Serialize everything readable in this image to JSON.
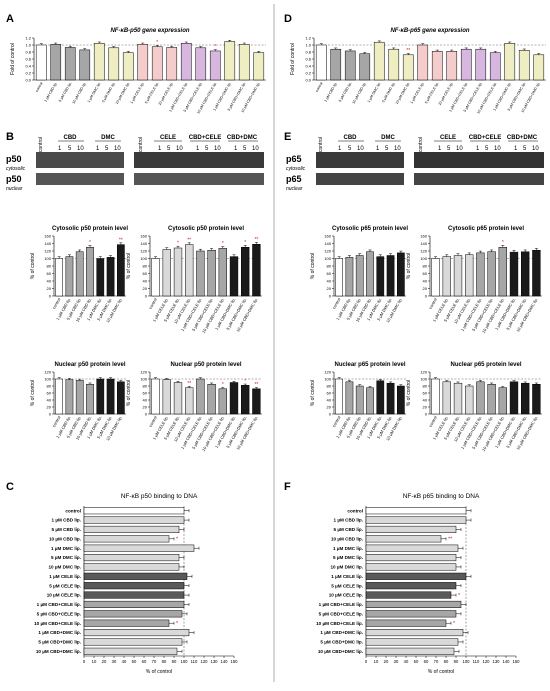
{
  "panels": [
    {
      "letter": "A"
    },
    {
      "letter": "B"
    },
    {
      "letter": "C"
    },
    {
      "letter": "D"
    },
    {
      "letter": "E"
    },
    {
      "letter": "F"
    }
  ],
  "blot_labels": {
    "p50_main": "p50",
    "p50_sub": "cytosolic",
    "p50n_main": "p50",
    "p50n_sub": "nuclear",
    "p65_main": "p65",
    "p65_sub": "cytosolic",
    "p65n_main": "p65",
    "p65n_sub": "nuclear",
    "group_cbd": "CBD",
    "group_dmc": "DMC",
    "group_cele": "CELE",
    "group_cbd_cele": "CBD+CELE",
    "group_cbd_dmc": "CBD+DMC",
    "lane_control": "control",
    "lane_1": "1",
    "lane_5": "5",
    "lane_10": "10"
  },
  "colors": {
    "accent": "#d11f1f",
    "white": "#ffffff",
    "light": "#d9d9d9",
    "mid": "#a6a6a6",
    "dark": "#595959",
    "black": "#1a1a1a",
    "yellowish": "#eeeec2",
    "pink": "#f4cccc",
    "purple": "#d7b7e0"
  },
  "chart_data": [
    {
      "id": "A",
      "type": "bar",
      "title": "NF-κB-p50 gene expression",
      "ylabel": "Fold of control",
      "ylim": [
        0,
        1.2
      ],
      "yticks": [
        "0.0",
        "0.2",
        "0.4",
        "0.6",
        "0.8",
        "1.0",
        "1.2"
      ],
      "categories": [
        "control",
        "1 µM CBD lip.",
        "5 µM CBD lip.",
        "10 µM CBD lip.",
        "1 µM DMC lip.",
        "5 µM DMC lip.",
        "10 µM DMC lip.",
        "1 µM CELE lip.",
        "5 µM CELE lip.",
        "10 µM CELE lip.",
        "1 µM CBD+CELE lip.",
        "5 µM CBD+CELE lip.",
        "10 µM CBD+CELE lip.",
        "1 µM CBD+DMC lip.",
        "5 µM CBD+DMC lip.",
        "10 µM CBD+DMC lip."
      ],
      "values": [
        1.0,
        1.02,
        0.93,
        0.86,
        1.05,
        0.92,
        0.78,
        1.02,
        0.95,
        0.93,
        1.05,
        0.92,
        0.83,
        1.1,
        1.02,
        0.78
      ],
      "stars": [
        "",
        "",
        "",
        "",
        "",
        "",
        "",
        "",
        "*",
        "",
        "",
        "",
        "*",
        "",
        "",
        ""
      ]
    },
    {
      "id": "D",
      "type": "bar",
      "title": "NF-κB-p65 gene expression",
      "ylabel": "Fold of control",
      "ylim": [
        0,
        1.2
      ],
      "yticks": [
        "0.0",
        "0.2",
        "0.4",
        "0.6",
        "0.8",
        "1.0",
        "1.2"
      ],
      "categories": [
        "control",
        "1 µM CBD lip.",
        "5 µM CBD lip.",
        "10 µM CBD lip.",
        "1 µM DMC lip.",
        "5 µM DMC lip.",
        "10 µM DMC lip.",
        "1 µM CELE lip.",
        "5 µM CELE lip.",
        "10 µM CELE lip.",
        "1 µM CBD+CELE lip.",
        "5 µM CBD+CELE lip.",
        "10 µM CBD+CELE lip.",
        "1 µM CBD+DMC lip.",
        "5 µM CBD+DMC lip.",
        "10 µM CBD+DMC lip."
      ],
      "values": [
        1.0,
        0.88,
        0.83,
        0.75,
        1.08,
        0.88,
        0.72,
        1.0,
        0.82,
        0.82,
        0.88,
        0.88,
        0.78,
        1.05,
        0.85,
        0.72
      ],
      "stars": [
        "",
        "",
        "",
        "",
        "",
        "",
        "**",
        "",
        "",
        "",
        "",
        "",
        "",
        "",
        "",
        ""
      ]
    },
    {
      "id": "B1",
      "type": "bar",
      "title": "Cytosolic p50 protein level",
      "ylabel": "% of control",
      "ylim": [
        0,
        160
      ],
      "yticks": [
        "0",
        "20",
        "40",
        "60",
        "80",
        "100",
        "120",
        "140",
        "160"
      ],
      "categories": [
        "control",
        "1 µM CBD lip.",
        "5 µM CBD lip.",
        "10 µM CBD lip.",
        "1 µM DMC lip.",
        "5 µM DMC lip.",
        "10 µM DMC lip."
      ],
      "values": [
        100,
        105,
        118,
        130,
        100,
        103,
        137
      ],
      "stars": [
        "",
        "",
        "",
        "*",
        "",
        "",
        "**"
      ]
    },
    {
      "id": "B2",
      "type": "bar",
      "title": "Cytosolic p50 protein level",
      "ylabel": "% of control",
      "ylim": [
        0,
        160
      ],
      "yticks": [
        "0",
        "20",
        "40",
        "60",
        "80",
        "100",
        "120",
        "140",
        "160"
      ],
      "categories": [
        "control",
        "1 µM CELE lip.",
        "5 µM CELE lip.",
        "10 µM CELE lip.",
        "1 µM CBD+CELE lip.",
        "5 µM CBD+CELE lip.",
        "10 µM CBD+CELE lip.",
        "1 µM CBD+DMC lip.",
        "5 µM CBD+DMC lip.",
        "10 µM CBD+DMC lip."
      ],
      "values": [
        100,
        124,
        128,
        137,
        120,
        122,
        127,
        105,
        130,
        138
      ],
      "stars": [
        "",
        "",
        "*",
        "**",
        "",
        "",
        "*",
        "",
        "*",
        "**"
      ]
    },
    {
      "id": "B3",
      "type": "bar",
      "title": "Nuclear p50 protein level",
      "ylabel": "% of control",
      "ylim": [
        0,
        120
      ],
      "yticks": [
        "0",
        "20",
        "40",
        "60",
        "80",
        "100",
        "120"
      ],
      "categories": [
        "control",
        "1 µM CBD lip.",
        "5 µM CBD lip.",
        "10 µM CBD lip.",
        "1 µM DMC lip.",
        "5 µM DMC lip.",
        "10 µM DMC lip."
      ],
      "values": [
        100,
        98,
        96,
        85,
        100,
        100,
        92
      ],
      "stars": [
        "",
        "",
        "",
        "",
        "",
        "",
        ""
      ]
    },
    {
      "id": "B4",
      "type": "bar",
      "title": "Nuclear p50 protein level",
      "ylabel": "% of control",
      "ylim": [
        0,
        120
      ],
      "yticks": [
        "0",
        "20",
        "40",
        "60",
        "80",
        "100",
        "120"
      ],
      "categories": [
        "control",
        "1 µM CELE lip.",
        "5 µM CELE lip.",
        "10 µM CELE lip.",
        "1 µM CBD+CELE lip.",
        "5 µM CBD+CELE lip.",
        "10 µM CBD+CELE lip.",
        "1 µM CBD+DMC lip.",
        "5 µM CBD+DMC lip.",
        "10 µM CBD+DMC lip."
      ],
      "values": [
        100,
        98,
        90,
        75,
        100,
        85,
        72,
        90,
        82,
        72
      ],
      "stars": [
        "",
        "",
        "",
        "**",
        "",
        "",
        "*",
        "",
        "*",
        "**"
      ]
    },
    {
      "id": "E1",
      "type": "bar",
      "title": "Cytosolic p65 protein level",
      "ylabel": "% of control",
      "ylim": [
        0,
        160
      ],
      "yticks": [
        "0",
        "20",
        "40",
        "60",
        "80",
        "100",
        "120",
        "140",
        "160"
      ],
      "categories": [
        "control",
        "1 µM CBD lip.",
        "5 µM CBD lip.",
        "10 µM CBD lip.",
        "1 µM DMC lip.",
        "5 µM DMC lip.",
        "10 µM DMC lip."
      ],
      "values": [
        100,
        103,
        108,
        118,
        105,
        108,
        115
      ],
      "stars": [
        "",
        "",
        "",
        "",
        "",
        "",
        ""
      ]
    },
    {
      "id": "E2",
      "type": "bar",
      "title": "Cytosolic p65 protein level",
      "ylabel": "% of control",
      "ylim": [
        0,
        160
      ],
      "yticks": [
        "0",
        "20",
        "40",
        "60",
        "80",
        "100",
        "120",
        "140",
        "160"
      ],
      "categories": [
        "control",
        "1 µM CELE lip.",
        "5 µM CELE lip.",
        "10 µM CELE lip.",
        "1 µM CBD+CELE lip.",
        "5 µM CBD+CELE lip.",
        "10 µM CBD+CELE lip.",
        "1 µM CBD+DMC lip.",
        "5 µM CBD+DMC lip.",
        "10 µM CBD+DMC lip."
      ],
      "values": [
        100,
        105,
        108,
        110,
        115,
        118,
        130,
        117,
        118,
        122
      ],
      "stars": [
        "",
        "",
        "",
        "",
        "",
        "",
        "*",
        "",
        "",
        ""
      ]
    },
    {
      "id": "E3",
      "type": "bar",
      "title": "Nuclear p65 protein level",
      "ylabel": "% of control",
      "ylim": [
        0,
        120
      ],
      "yticks": [
        "0",
        "20",
        "40",
        "60",
        "80",
        "100",
        "120"
      ],
      "categories": [
        "control",
        "1 µM CBD lip.",
        "5 µM CBD lip.",
        "10 µM CBD lip.",
        "1 µM DMC lip.",
        "5 µM DMC lip.",
        "10 µM DMC lip."
      ],
      "values": [
        100,
        92,
        80,
        75,
        95,
        88,
        80
      ],
      "stars": [
        "",
        "",
        "",
        "",
        "",
        "",
        ""
      ]
    },
    {
      "id": "E4",
      "type": "bar",
      "title": "Nuclear p65 protein level",
      "ylabel": "% of control",
      "ylim": [
        0,
        120
      ],
      "yticks": [
        "0",
        "20",
        "40",
        "60",
        "80",
        "100",
        "120"
      ],
      "categories": [
        "control",
        "1 µM CELE lip.",
        "5 µM CELE lip.",
        "10 µM CELE lip.",
        "1 µM CBD+CELE lip.",
        "5 µM CBD+CELE lip.",
        "10 µM CBD+CELE lip.",
        "1 µM CBD+DMC lip.",
        "5 µM CBD+DMC lip.",
        "10 µM CBD+DMC lip."
      ],
      "values": [
        100,
        92,
        88,
        80,
        92,
        85,
        75,
        92,
        88,
        85
      ],
      "stars": [
        "",
        "",
        "",
        "",
        "",
        "",
        "",
        "",
        "",
        ""
      ]
    },
    {
      "id": "C",
      "type": "bar",
      "orientation": "horizontal",
      "title": "NF-κB p50 binding to DNA",
      "xlabel": "% of control",
      "xlim": [
        0,
        150
      ],
      "xticks": [
        "0",
        "10",
        "20",
        "30",
        "40",
        "50",
        "60",
        "70",
        "80",
        "90",
        "100",
        "110",
        "120",
        "130",
        "140",
        "150"
      ],
      "categories": [
        "control",
        "1 µM CBD lip.",
        "5 µM CBD lip.",
        "10 µM CBD lip.",
        "1 µM DMC lip.",
        "5 µM DMC lip.",
        "10 µM DMC lip.",
        "1 µM CELE lip.",
        "5 µM CELE lip.",
        "10 µM CELE lip.",
        "1 µM CBD+CELE lip.",
        "5 µM CBD+CELE lip.",
        "10 µM CBD+CELE lip.",
        "1 µM CBD+DMC lip.",
        "5 µM CBD+DMC lip.",
        "10 µM CBD+DMC lip."
      ],
      "values": [
        100,
        100,
        95,
        85,
        110,
        95,
        95,
        103,
        100,
        100,
        100,
        98,
        85,
        105,
        98,
        93
      ],
      "stars": [
        "",
        "",
        "",
        "*",
        "",
        "",
        "",
        "",
        "",
        "",
        "",
        "",
        "*",
        "",
        "",
        ""
      ]
    },
    {
      "id": "F",
      "type": "bar",
      "orientation": "horizontal",
      "title": "NF-κB p65 binding to DNA",
      "xlabel": "% of control",
      "xlim": [
        0,
        150
      ],
      "xticks": [
        "0",
        "10",
        "20",
        "30",
        "40",
        "50",
        "60",
        "70",
        "80",
        "90",
        "100",
        "110",
        "120",
        "130",
        "140",
        "150"
      ],
      "categories": [
        "control",
        "1 µM CBD lip.",
        "5 µM CBD lip.",
        "10 µM CBD lip.",
        "1 µM DMC lip.",
        "5 µM DMC lip.",
        "10 µM DMC lip.",
        "1 µM CELE lip.",
        "5 µM CELE lip.",
        "10 µM CELE lip.",
        "1 µM CBD+CELE lip.",
        "5 µM CBD+CELE lip.",
        "10 µM CBD+CELE lip.",
        "1 µM CBD+DMC lip.",
        "5 µM CBD+DMC lip.",
        "10 µM CBD+DMC lip."
      ],
      "values": [
        100,
        100,
        90,
        75,
        92,
        90,
        90,
        100,
        90,
        85,
        95,
        90,
        80,
        97,
        92,
        88
      ],
      "stars": [
        "",
        "",
        "",
        "**",
        "",
        "",
        "",
        "",
        "",
        "*",
        "",
        "",
        "*",
        "",
        "",
        ""
      ]
    }
  ]
}
